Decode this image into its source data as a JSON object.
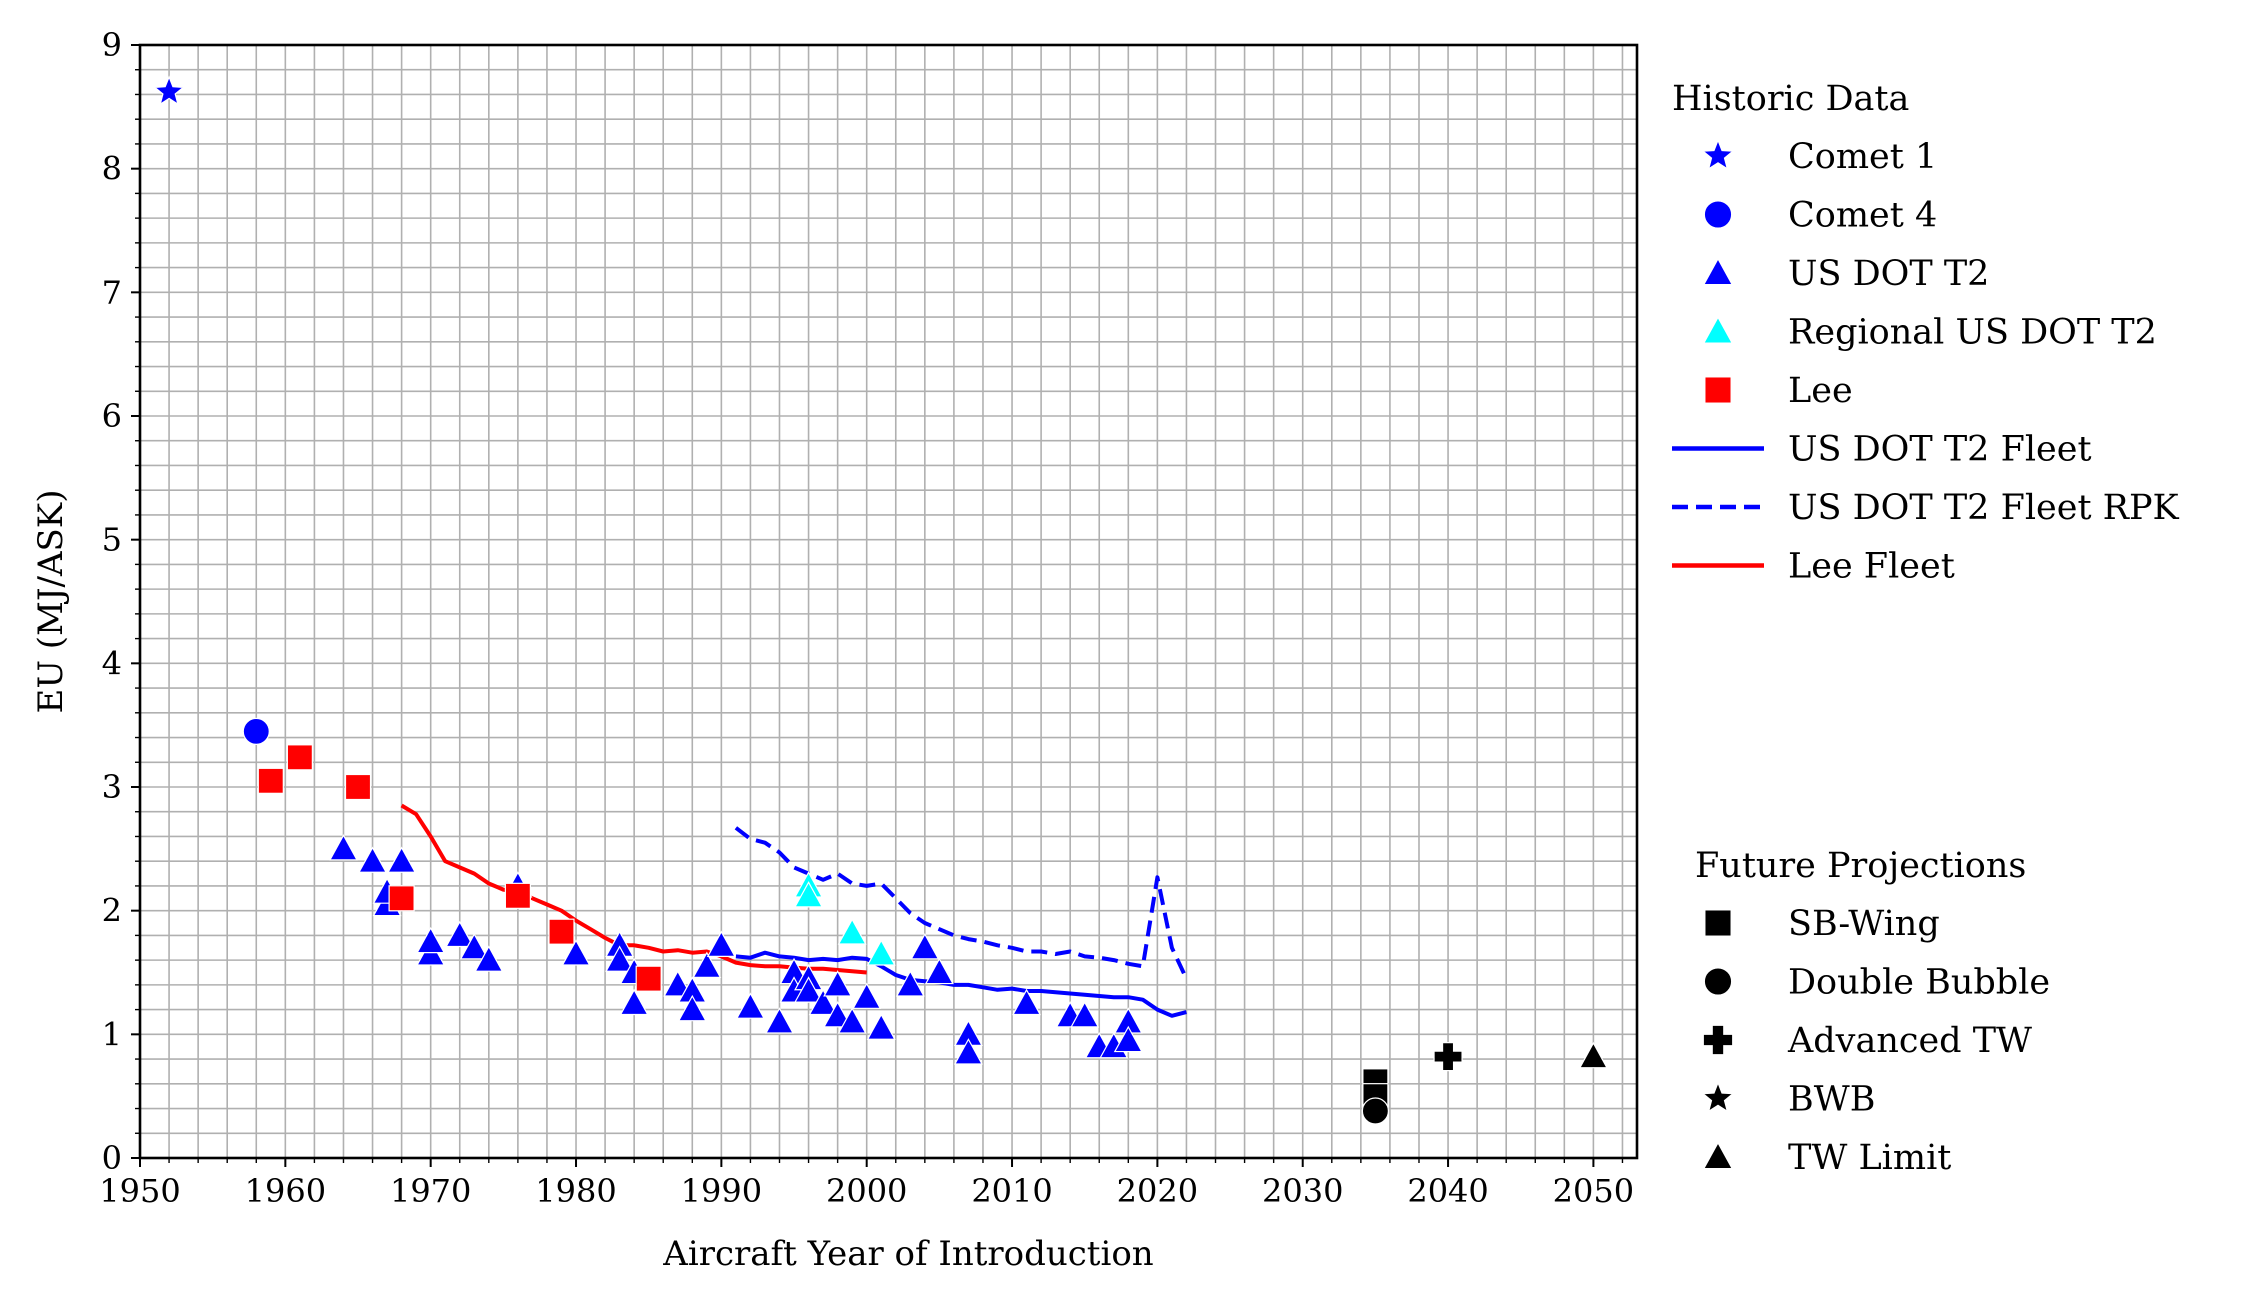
{
  "chart_data": {
    "type": "scatter",
    "title": "",
    "xlabel": "Aircraft Year of Introduction",
    "ylabel": "EU (MJ/ASK)",
    "xlim": [
      1950,
      2053
    ],
    "ylim": [
      0,
      9
    ],
    "xticks": [
      1950,
      1960,
      1970,
      1980,
      1990,
      2000,
      2010,
      2020,
      2030,
      2040,
      2050
    ],
    "yticks": [
      0,
      1,
      2,
      3,
      4,
      5,
      6,
      7,
      8,
      9
    ],
    "grid": {
      "major_x": 10,
      "minor_x": 2,
      "major_y": 1,
      "minor_y": 0.2
    },
    "colors": {
      "blue": "#0000ff",
      "cyan": "#00ffff",
      "red": "#ff0000",
      "black": "#000000",
      "grid": "#b0b0b0"
    },
    "legend_groups": [
      {
        "title": "Historic Data",
        "placement": "outside-right-top",
        "entries": [
          {
            "label": "Comet 1",
            "kind": "marker",
            "marker": "star",
            "color": "#0000ff"
          },
          {
            "label": "Comet 4",
            "kind": "marker",
            "marker": "circle",
            "color": "#0000ff"
          },
          {
            "label": "US DOT T2",
            "kind": "marker",
            "marker": "triangle",
            "color": "#0000ff"
          },
          {
            "label": "Regional US DOT T2",
            "kind": "marker",
            "marker": "triangle",
            "color": "#00ffff"
          },
          {
            "label": "Lee",
            "kind": "marker",
            "marker": "square",
            "color": "#ff0000"
          },
          {
            "label": "US DOT T2 Fleet",
            "kind": "line",
            "dash": "solid",
            "color": "#0000ff"
          },
          {
            "label": "US DOT T2 Fleet RPK",
            "kind": "line",
            "dash": "dashed",
            "color": "#0000ff"
          },
          {
            "label": "Lee Fleet",
            "kind": "line",
            "dash": "solid",
            "color": "#ff0000"
          }
        ]
      },
      {
        "title": "Future Projections",
        "placement": "outside-right-bottom",
        "entries": [
          {
            "label": "SB-Wing",
            "kind": "marker",
            "marker": "square",
            "color": "#000000"
          },
          {
            "label": "Double Bubble",
            "kind": "marker",
            "marker": "circle",
            "color": "#000000"
          },
          {
            "label": "Advanced TW",
            "kind": "marker",
            "marker": "plus",
            "color": "#000000"
          },
          {
            "label": "BWB",
            "kind": "marker",
            "marker": "star",
            "color": "#000000"
          },
          {
            "label": "TW Limit",
            "kind": "marker",
            "marker": "triangle",
            "color": "#000000"
          }
        ]
      }
    ],
    "scatter_series": [
      {
        "name": "Comet 1",
        "marker": "star",
        "color": "#0000ff",
        "points": [
          [
            1952,
            8.62
          ]
        ]
      },
      {
        "name": "Comet 4",
        "marker": "circle",
        "color": "#0000ff",
        "points": [
          [
            1958,
            3.45
          ]
        ]
      },
      {
        "name": "US DOT T2",
        "marker": "triangle",
        "color": "#0000ff",
        "points": [
          [
            1964,
            2.5
          ],
          [
            1966,
            2.4
          ],
          [
            1967,
            2.05
          ],
          [
            1967,
            2.15
          ],
          [
            1968,
            2.4
          ],
          [
            1970,
            1.65
          ],
          [
            1970,
            1.75
          ],
          [
            1972,
            1.8
          ],
          [
            1973,
            1.7
          ],
          [
            1974,
            1.6
          ],
          [
            1976,
            2.2
          ],
          [
            1980,
            1.65
          ],
          [
            1983,
            1.72
          ],
          [
            1983,
            1.6
          ],
          [
            1984,
            1.5
          ],
          [
            1984,
            1.25
          ],
          [
            1987,
            1.4
          ],
          [
            1988,
            1.35
          ],
          [
            1988,
            1.2
          ],
          [
            1989,
            1.55
          ],
          [
            1990,
            1.72
          ],
          [
            1992,
            1.22
          ],
          [
            1994,
            1.1
          ],
          [
            1995,
            1.5
          ],
          [
            1995,
            1.35
          ],
          [
            1996,
            1.45
          ],
          [
            1996,
            1.35
          ],
          [
            1997,
            1.25
          ],
          [
            1998,
            1.4
          ],
          [
            1998,
            1.15
          ],
          [
            1999,
            1.1
          ],
          [
            2000,
            1.3
          ],
          [
            2001,
            1.05
          ],
          [
            2003,
            1.4
          ],
          [
            2004,
            1.7
          ],
          [
            2005,
            1.5
          ],
          [
            2007,
            1.0
          ],
          [
            2007,
            0.85
          ],
          [
            2011,
            1.25
          ],
          [
            2014,
            1.15
          ],
          [
            2015,
            1.15
          ],
          [
            2016,
            0.9
          ],
          [
            2017,
            0.9
          ],
          [
            2018,
            1.1
          ],
          [
            2018,
            0.95
          ]
        ]
      },
      {
        "name": "Regional US DOT T2",
        "marker": "triangle",
        "color": "#00ffff",
        "points": [
          [
            1996,
            2.2
          ],
          [
            1996,
            2.12
          ],
          [
            1999,
            1.82
          ],
          [
            2001,
            1.65
          ]
        ]
      },
      {
        "name": "Lee",
        "marker": "square",
        "color": "#ff0000",
        "points": [
          [
            1959,
            3.05
          ],
          [
            1961,
            3.24
          ],
          [
            1965,
            3.0
          ],
          [
            1968,
            2.1
          ],
          [
            1976,
            2.12
          ],
          [
            1979,
            1.83
          ],
          [
            1985,
            1.45
          ]
        ]
      },
      {
        "name": "SB-Wing",
        "marker": "square",
        "color": "#000000",
        "points": [
          [
            2035,
            0.62
          ],
          [
            2035,
            0.5
          ]
        ]
      },
      {
        "name": "Double Bubble",
        "marker": "circle",
        "color": "#000000",
        "points": [
          [
            2035,
            0.38
          ]
        ]
      },
      {
        "name": "Advanced TW",
        "marker": "plus",
        "color": "#000000",
        "points": [
          [
            2040,
            0.82
          ]
        ]
      },
      {
        "name": "TW Limit",
        "marker": "triangle",
        "color": "#000000",
        "points": [
          [
            2050,
            0.82
          ]
        ]
      }
    ],
    "line_series": [
      {
        "name": "US DOT T2 Fleet",
        "dash": "solid",
        "color": "#0000ff",
        "points": [
          [
            1991,
            1.63
          ],
          [
            1992,
            1.62
          ],
          [
            1993,
            1.66
          ],
          [
            1994,
            1.63
          ],
          [
            1995,
            1.62
          ],
          [
            1996,
            1.6
          ],
          [
            1997,
            1.61
          ],
          [
            1998,
            1.6
          ],
          [
            1999,
            1.62
          ],
          [
            2000,
            1.61
          ],
          [
            2001,
            1.55
          ],
          [
            2002,
            1.48
          ],
          [
            2003,
            1.44
          ],
          [
            2004,
            1.43
          ],
          [
            2005,
            1.42
          ],
          [
            2006,
            1.4
          ],
          [
            2007,
            1.4
          ],
          [
            2008,
            1.38
          ],
          [
            2009,
            1.36
          ],
          [
            2010,
            1.37
          ],
          [
            2011,
            1.35
          ],
          [
            2012,
            1.35
          ],
          [
            2013,
            1.34
          ],
          [
            2014,
            1.33
          ],
          [
            2015,
            1.32
          ],
          [
            2016,
            1.31
          ],
          [
            2017,
            1.3
          ],
          [
            2018,
            1.3
          ],
          [
            2019,
            1.28
          ],
          [
            2020,
            1.2
          ],
          [
            2021,
            1.15
          ],
          [
            2022,
            1.18
          ]
        ]
      },
      {
        "name": "US DOT T2 Fleet RPK",
        "dash": "dashed",
        "color": "#0000ff",
        "points": [
          [
            1991,
            2.67
          ],
          [
            1992,
            2.58
          ],
          [
            1993,
            2.55
          ],
          [
            1994,
            2.47
          ],
          [
            1995,
            2.35
          ],
          [
            1996,
            2.3
          ],
          [
            1997,
            2.25
          ],
          [
            1998,
            2.3
          ],
          [
            1999,
            2.22
          ],
          [
            2000,
            2.2
          ],
          [
            2001,
            2.22
          ],
          [
            2002,
            2.1
          ],
          [
            2003,
            1.98
          ],
          [
            2004,
            1.9
          ],
          [
            2005,
            1.85
          ],
          [
            2006,
            1.8
          ],
          [
            2007,
            1.77
          ],
          [
            2008,
            1.75
          ],
          [
            2009,
            1.72
          ],
          [
            2010,
            1.7
          ],
          [
            2011,
            1.67
          ],
          [
            2012,
            1.67
          ],
          [
            2013,
            1.65
          ],
          [
            2014,
            1.67
          ],
          [
            2015,
            1.63
          ],
          [
            2016,
            1.62
          ],
          [
            2017,
            1.6
          ],
          [
            2018,
            1.57
          ],
          [
            2019,
            1.55
          ],
          [
            2020,
            2.27
          ],
          [
            2021,
            1.7
          ],
          [
            2022,
            1.45
          ]
        ]
      },
      {
        "name": "Lee Fleet",
        "dash": "solid",
        "color": "#ff0000",
        "points": [
          [
            1968,
            2.85
          ],
          [
            1969,
            2.78
          ],
          [
            1970,
            2.6
          ],
          [
            1971,
            2.4
          ],
          [
            1972,
            2.35
          ],
          [
            1973,
            2.3
          ],
          [
            1974,
            2.22
          ],
          [
            1975,
            2.17
          ],
          [
            1976,
            2.15
          ],
          [
            1977,
            2.1
          ],
          [
            1978,
            2.05
          ],
          [
            1979,
            2.0
          ],
          [
            1980,
            1.92
          ],
          [
            1981,
            1.85
          ],
          [
            1982,
            1.78
          ],
          [
            1983,
            1.72
          ],
          [
            1984,
            1.72
          ],
          [
            1985,
            1.7
          ],
          [
            1986,
            1.67
          ],
          [
            1987,
            1.68
          ],
          [
            1988,
            1.66
          ],
          [
            1989,
            1.67
          ],
          [
            1990,
            1.63
          ],
          [
            1991,
            1.58
          ],
          [
            1992,
            1.56
          ],
          [
            1993,
            1.55
          ],
          [
            1994,
            1.55
          ],
          [
            1995,
            1.54
          ],
          [
            1996,
            1.53
          ],
          [
            1997,
            1.53
          ],
          [
            1998,
            1.52
          ],
          [
            1999,
            1.51
          ],
          [
            2000,
            1.5
          ]
        ]
      }
    ]
  }
}
